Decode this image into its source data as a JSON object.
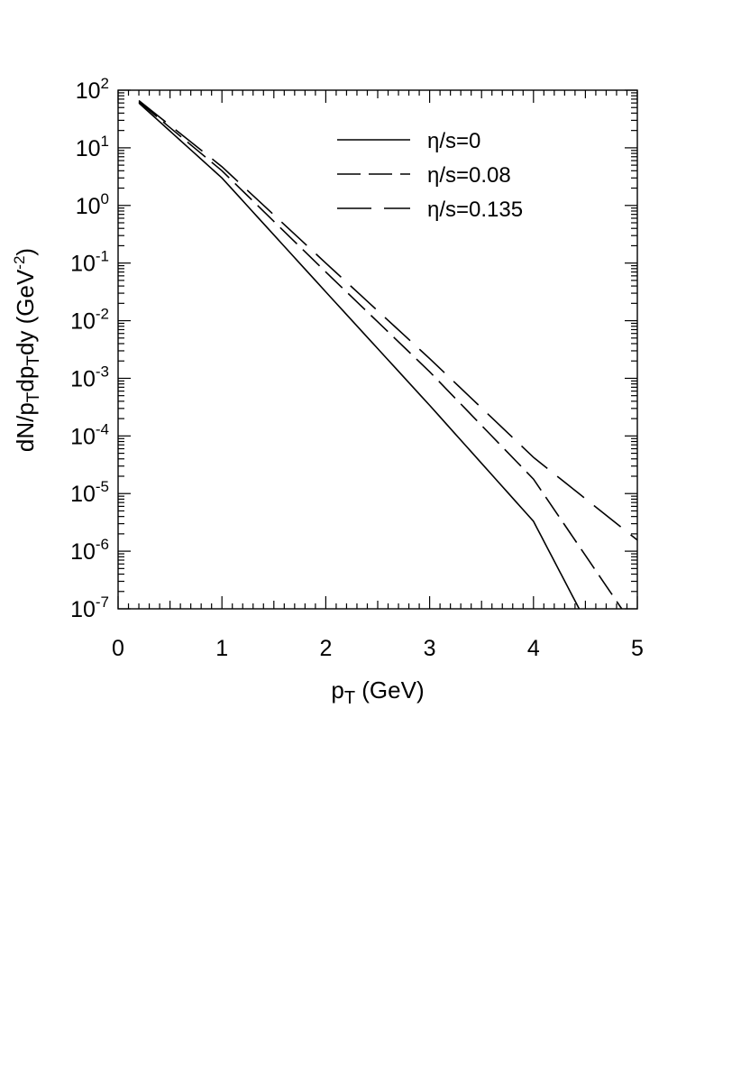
{
  "chart_data": {
    "type": "line",
    "title": "",
    "xlabel": {
      "base": "p",
      "sub": "T",
      "rest": " (GeV)"
    },
    "ylabel": {
      "parts": [
        "dN/p",
        "T",
        "dp",
        "T",
        "dy (GeV",
        "-2",
        ")"
      ]
    },
    "xlim": [
      0,
      5
    ],
    "ylim": [
      1e-07,
      100
    ],
    "yscale": "log",
    "grid": false,
    "legend_position": "top-right",
    "x_ticks": [
      {
        "value": 0,
        "label": "0"
      },
      {
        "value": 1,
        "label": "1"
      },
      {
        "value": 2,
        "label": "2"
      },
      {
        "value": 3,
        "label": "3"
      },
      {
        "value": 4,
        "label": "4"
      },
      {
        "value": 5,
        "label": "5"
      }
    ],
    "y_ticks": [
      {
        "value": 100,
        "base": "10",
        "exp": "2"
      },
      {
        "value": 10,
        "base": "10",
        "exp": "1"
      },
      {
        "value": 1,
        "base": "10",
        "exp": "0"
      },
      {
        "value": 0.1,
        "base": "10",
        "exp": "-1"
      },
      {
        "value": 0.01,
        "base": "10",
        "exp": "-2"
      },
      {
        "value": 0.001,
        "base": "10",
        "exp": "-3"
      },
      {
        "value": 0.0001,
        "base": "10",
        "exp": "-4"
      },
      {
        "value": 1e-05,
        "base": "10",
        "exp": "-5"
      },
      {
        "value": 1e-06,
        "base": "10",
        "exp": "-6"
      },
      {
        "value": 1e-07,
        "base": "10",
        "exp": "-7"
      }
    ],
    "series": [
      {
        "name": "η/s=0",
        "dash": "solid",
        "x": [
          0.2,
          1.0,
          2.0,
          3.0,
          4.0,
          4.44
        ],
        "y": [
          60,
          3.0,
          0.0316,
          0.00034,
          3.3e-06,
          1e-07
        ]
      },
      {
        "name": "η/s=0.08",
        "dash": "medium",
        "x": [
          0.2,
          1.0,
          2.0,
          3.0,
          4.0,
          4.85
        ],
        "y": [
          63,
          4.0,
          0.07,
          0.0013,
          1.78e-05,
          1e-07
        ]
      },
      {
        "name": "η/s=0.135",
        "dash": "long",
        "x": [
          0.2,
          1.0,
          2.0,
          3.0,
          4.0,
          5.0
        ],
        "y": [
          66,
          4.7,
          0.1,
          0.0022,
          4.25e-05,
          1.56e-06
        ]
      }
    ]
  }
}
